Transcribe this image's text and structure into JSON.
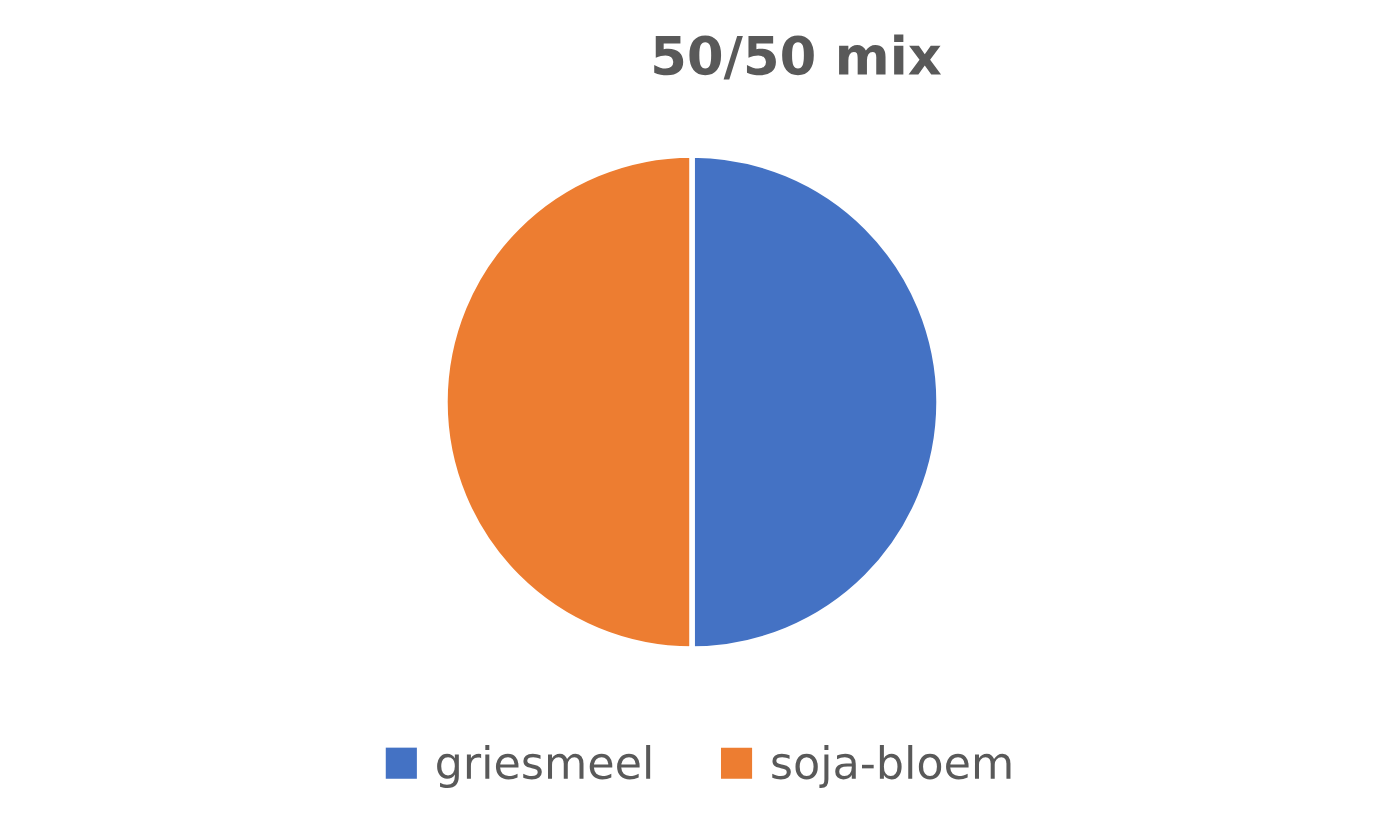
{
  "chart_data": {
    "type": "pie",
    "title": "50/50 mix",
    "categories": [
      "griesmeel",
      "soja-bloem"
    ],
    "values": [
      50,
      50
    ],
    "colors": [
      "#4472c4",
      "#ed7d31"
    ],
    "legend": "bottom"
  }
}
